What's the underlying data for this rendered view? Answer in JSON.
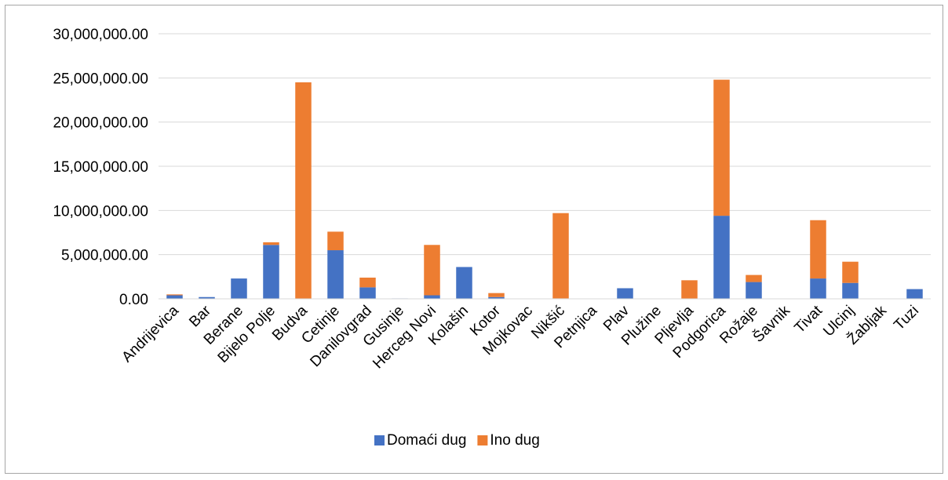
{
  "chart_data": {
    "type": "bar",
    "stacked": true,
    "title": "",
    "xlabel": "",
    "ylabel": "",
    "ylim": [
      0,
      30000000
    ],
    "yticks": [
      0,
      5000000,
      10000000,
      15000000,
      20000000,
      25000000,
      30000000
    ],
    "ytick_labels": [
      "0.00",
      "5,000,000.00",
      "10,000,000.00",
      "15,000,000.00",
      "20,000,000.00",
      "25,000,000.00",
      "30,000,000.00"
    ],
    "grid": true,
    "legend": "bottom",
    "categories": [
      "Andrijevica",
      "Bar",
      "Berane",
      "Bijelo Polje",
      "Budva",
      "Cetinje",
      "Danilovgrad",
      "Gusinje",
      "Herceg Novi",
      "Kolašin",
      "Kotor",
      "Mojkovac",
      "Nikšić",
      "Petnjica",
      "Plav",
      "Plužine",
      "Pljevlja",
      "Podgorica",
      "Rožaje",
      "Šavnik",
      "Tivat",
      "Ulcinj",
      "Žabljak",
      "Tuzi"
    ],
    "series": [
      {
        "name": "Domaći dug",
        "color": "#4472c4",
        "values": [
          400000,
          200000,
          2300000,
          6100000,
          0,
          5500000,
          1300000,
          50000,
          400000,
          3600000,
          200000,
          0,
          50000,
          0,
          1200000,
          0,
          0,
          9400000,
          1900000,
          0,
          2300000,
          1800000,
          0,
          1100000
        ]
      },
      {
        "name": "Ino dug",
        "color": "#ed7d31",
        "values": [
          100000,
          0,
          0,
          300000,
          24500000,
          2100000,
          1100000,
          0,
          5700000,
          0,
          450000,
          0,
          9650000,
          0,
          0,
          0,
          2100000,
          15400000,
          800000,
          0,
          6600000,
          2400000,
          0,
          0
        ]
      }
    ]
  }
}
